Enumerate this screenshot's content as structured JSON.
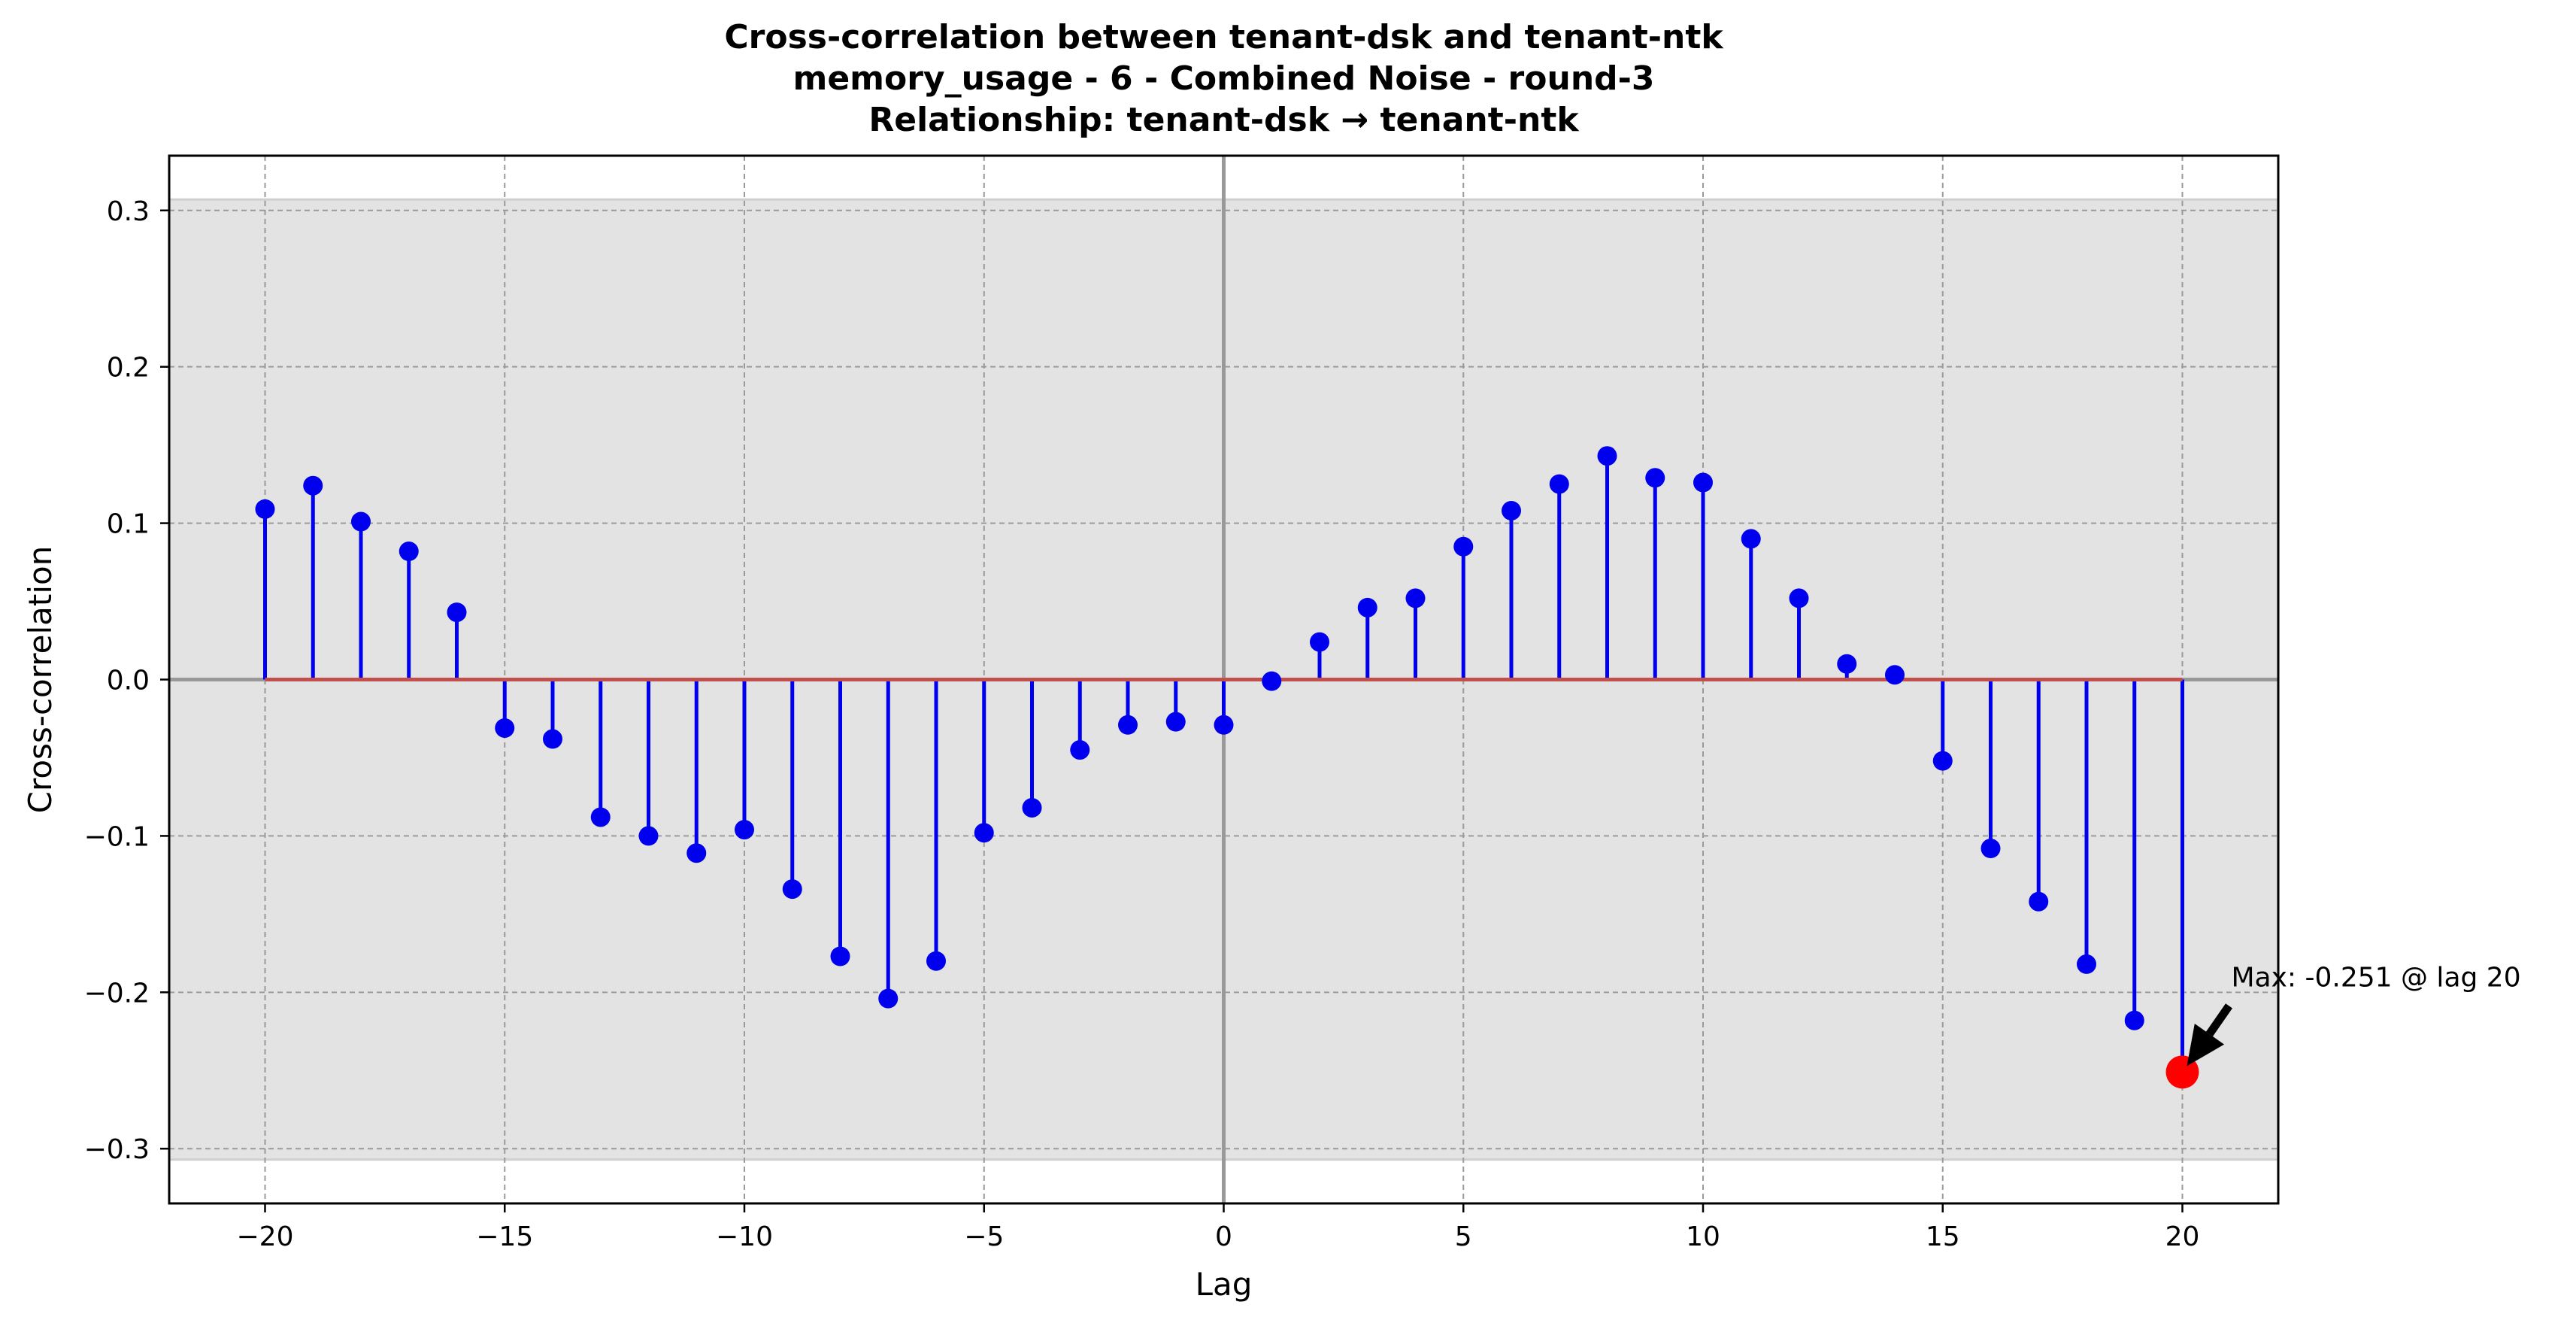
{
  "chart_data": {
    "type": "stem",
    "title": "Cross-correlation between tenant-dsk and tenant-ntk\nmemory_usage - 6 - Combined Noise - round-3\nRelationship: tenant-dsk → tenant-ntk",
    "title_lines": [
      "Cross-correlation between tenant-dsk and tenant-ntk",
      "memory_usage - 6 - Combined Noise - round-3",
      "Relationship: tenant-dsk → tenant-ntk"
    ],
    "xlabel": "Lag",
    "ylabel": "Cross-correlation",
    "xlim": [
      -22,
      22
    ],
    "ylim": [
      -0.335,
      0.335
    ],
    "xticks": [
      -20,
      -15,
      -10,
      -5,
      0,
      5,
      10,
      15,
      20
    ],
    "xtick_labels": [
      "−20",
      "−15",
      "−10",
      "−5",
      "0",
      "5",
      "10",
      "15",
      "20"
    ],
    "yticks": [
      -0.3,
      -0.2,
      -0.1,
      0.0,
      0.1,
      0.2,
      0.3
    ],
    "ytick_labels": [
      "−0.3",
      "−0.2",
      "−0.1",
      "0.0",
      "0.1",
      "0.2",
      "0.3"
    ],
    "grid": true,
    "confidence_band": [
      -0.307,
      0.307
    ],
    "lags": [
      -20,
      -19,
      -18,
      -17,
      -16,
      -15,
      -14,
      -13,
      -12,
      -11,
      -10,
      -9,
      -8,
      -7,
      -6,
      -5,
      -4,
      -3,
      -2,
      -1,
      0,
      1,
      2,
      3,
      4,
      5,
      6,
      7,
      8,
      9,
      10,
      11,
      12,
      13,
      14,
      15,
      16,
      17,
      18,
      19,
      20
    ],
    "values": [
      0.109,
      0.124,
      0.101,
      0.082,
      0.043,
      -0.031,
      -0.038,
      -0.088,
      -0.1,
      -0.111,
      -0.096,
      -0.134,
      -0.177,
      -0.204,
      -0.18,
      -0.098,
      -0.082,
      -0.045,
      -0.029,
      -0.027,
      -0.029,
      -0.001,
      0.024,
      0.046,
      0.052,
      0.085,
      0.108,
      0.125,
      0.143,
      0.129,
      0.126,
      0.09,
      0.052,
      0.01,
      0.003,
      -0.052,
      -0.108,
      -0.142,
      -0.182,
      -0.218,
      -0.251
    ],
    "max_point": {
      "lag": 20,
      "value": -0.251
    },
    "annotation": "Max: -0.251 @ lag 20",
    "colors": {
      "stem": "#0000ee",
      "marker": "#0000ee",
      "baseline": "#c0504d",
      "max_marker": "#ff0000",
      "band": "#e3e3e3",
      "grid": "#9a9a9a",
      "zero_line": "#999999"
    }
  }
}
